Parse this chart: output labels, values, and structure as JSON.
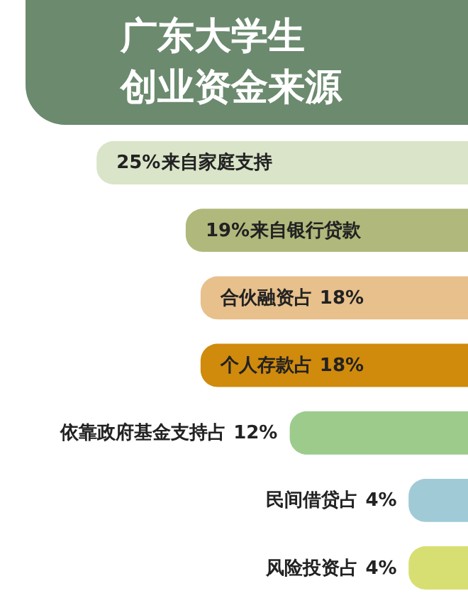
{
  "chart_data": {
    "type": "bar",
    "orientation": "horizontal",
    "title": "广东大学生创业资金来源",
    "categories": [
      "来自家庭支持",
      "来自银行贷款",
      "合伙融资占",
      "个人存款占",
      "依靠政府基金支持占",
      "民间借贷占",
      "风险投资占"
    ],
    "values": [
      25,
      19,
      18,
      18,
      12,
      4,
      4
    ],
    "value_labels": [
      "25%",
      "19%",
      "18%",
      "18%",
      "12%",
      "4%",
      "4%"
    ],
    "colors": [
      "#d9e4c8",
      "#b0b87c",
      "#e8c08c",
      "#d08a0c",
      "#9ccb8c",
      "#a0cbd6",
      "#d7df72"
    ],
    "tick_labels": false
  }
}
